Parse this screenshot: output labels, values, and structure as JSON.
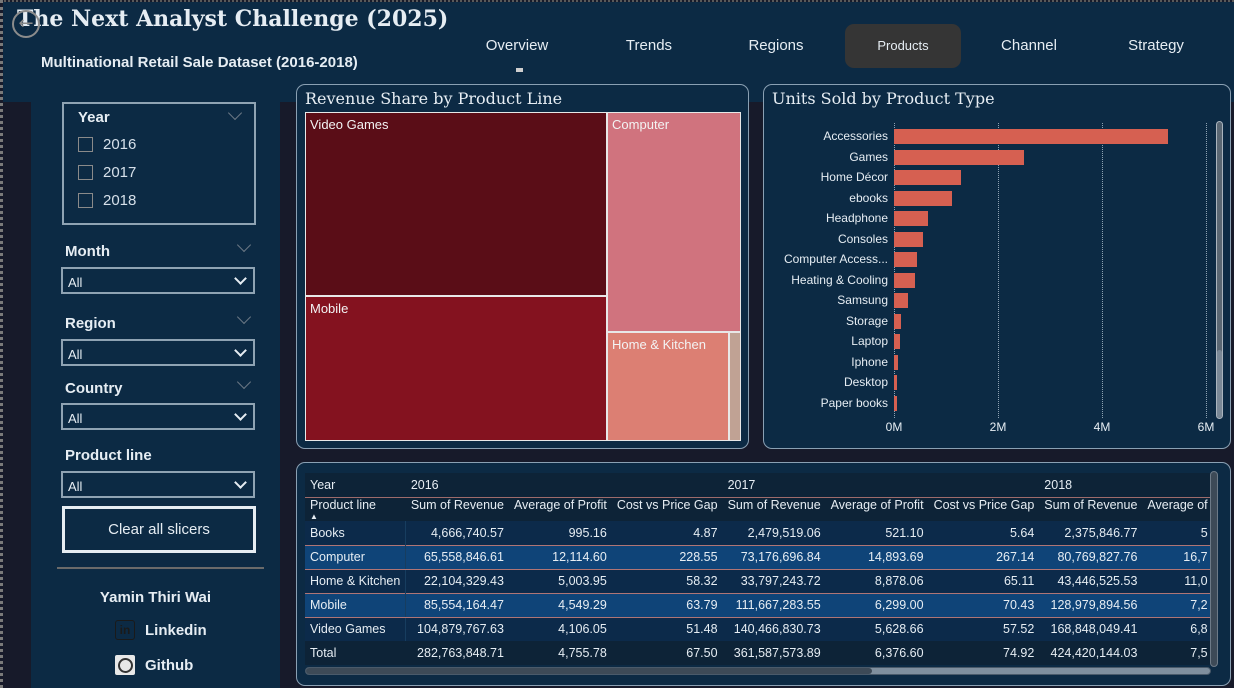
{
  "header": {
    "title": "The Next Analyst Challenge (2025)",
    "subtitle": "Multinational Retail Sale Dataset (2016-2018)",
    "back_icon": "back-arrow-icon",
    "nav_tabs": [
      {
        "label": "Overview",
        "active": false
      },
      {
        "label": "Trends",
        "active": false
      },
      {
        "label": "Regions",
        "active": false
      },
      {
        "label": "Products",
        "active": true
      },
      {
        "label": "Channel",
        "active": false
      },
      {
        "label": "Strategy",
        "active": false
      }
    ]
  },
  "sidebar": {
    "year_slicer": {
      "title": "Year",
      "options": [
        {
          "label": "2016",
          "checked": false
        },
        {
          "label": "2017",
          "checked": false
        },
        {
          "label": "2018",
          "checked": false
        }
      ]
    },
    "month_slicer": {
      "title": "Month",
      "value": "All"
    },
    "region_slicer": {
      "title": "Region",
      "value": "All"
    },
    "country_slicer": {
      "title": "Country",
      "value": "All"
    },
    "product_line_slicer": {
      "title": "Product line",
      "value": "All"
    },
    "clear_button": "Clear all slicers",
    "author": "Yamin Thiri Wai",
    "links": [
      {
        "label": "Linkedin",
        "icon": "linkedin-icon"
      },
      {
        "label": "Github",
        "icon": "github-icon"
      }
    ]
  },
  "colors": {
    "background": "#171a2a",
    "panel": "#0c2a44",
    "bar": "#d66051",
    "treemap": [
      "#5a0d17",
      "#84121f",
      "#d0737e",
      "#dc7f73",
      "#c0a294"
    ]
  },
  "chart_data": [
    {
      "type": "treemap",
      "title": "Revenue Share by Product Line",
      "categories": [
        "Video Games",
        "Mobile",
        "Computer",
        "Home & Kitchen",
        "Books"
      ],
      "values": [
        414194647.77,
        326201342.58,
        219505371.21,
        99348098.68,
        9522106.4
      ],
      "unit": "Revenue"
    },
    {
      "type": "bar",
      "orientation": "horizontal",
      "title": "Units Sold by Product Type",
      "categories": [
        "Accessories",
        "Games",
        "Home Décor",
        "ebooks",
        "Headphone",
        "Consoles",
        "Computer Access...",
        "Heating & Cooling",
        "Samsung",
        "Storage",
        "Laptop",
        "Iphone",
        "Desktop",
        "Paper books"
      ],
      "values": [
        5270000,
        2500000,
        1290000,
        1120000,
        650000,
        560000,
        440000,
        400000,
        270000,
        130000,
        120000,
        80000,
        60000,
        50000
      ],
      "xlabel": "",
      "ylabel": "",
      "xlim": [
        0,
        6000000
      ],
      "x_ticks": [
        "0M",
        "2M",
        "4M",
        "6M"
      ],
      "grid": true
    }
  ],
  "matrix": {
    "row_header_label": "Year",
    "row_field_label": "Product line",
    "years": [
      "2016",
      "2017",
      "2018"
    ],
    "columns": [
      "Sum of Revenue",
      "Average of Profit",
      "Cost vs Price Gap",
      "Sum of Revenue",
      "Average of Profit",
      "Cost vs Price Gap",
      "Sum of Revenue",
      "Average of"
    ],
    "rows": [
      {
        "name": "Books",
        "cells": [
          "4,666,740.57",
          "995.16",
          "4.87",
          "2,479,519.06",
          "521.10",
          "5.64",
          "2,375,846.77",
          "5"
        ]
      },
      {
        "name": "Computer",
        "cells": [
          "65,558,846.61",
          "12,114.60",
          "228.55",
          "73,176,696.84",
          "14,893.69",
          "267.14",
          "80,769,827.76",
          "16,7"
        ]
      },
      {
        "name": "Home & Kitchen",
        "cells": [
          "22,104,329.43",
          "5,003.95",
          "58.32",
          "33,797,243.72",
          "8,878.06",
          "65.11",
          "43,446,525.53",
          "11,0"
        ]
      },
      {
        "name": "Mobile",
        "cells": [
          "85,554,164.47",
          "4,549.29",
          "63.79",
          "111,667,283.55",
          "6,299.00",
          "70.43",
          "128,979,894.56",
          "7,2"
        ]
      },
      {
        "name": "Video Games",
        "cells": [
          "104,879,767.63",
          "4,106.05",
          "51.48",
          "140,466,830.73",
          "5,628.66",
          "57.52",
          "168,848,049.41",
          "6,8"
        ]
      }
    ],
    "total": {
      "name": "Total",
      "cells": [
        "282,763,848.71",
        "4,755.78",
        "67.50",
        "361,587,573.89",
        "6,376.60",
        "74.92",
        "424,420,144.03",
        "7,5"
      ]
    }
  }
}
